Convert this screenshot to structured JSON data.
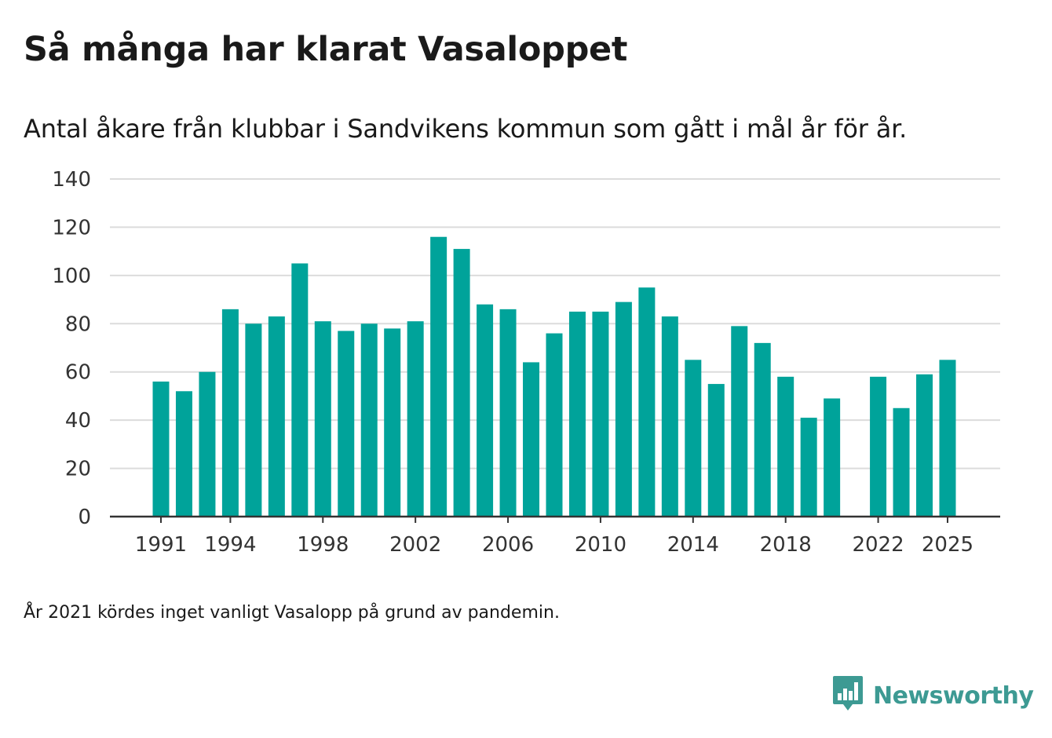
{
  "header": {
    "title": "Så många har klarat Vasaloppet",
    "subtitle": "Antal åkare från klubbar i Sandvikens kommun som gått i mål år för år."
  },
  "footer": {
    "note": "År 2021 kördes inget vanligt Vasalopp på grund av pandemin.",
    "brand": "Newsworthy",
    "brand_icon": "bar-chart-speech-bubble-icon"
  },
  "colors": {
    "bar": "#00a39a",
    "brand": "#3d9a93",
    "grid": "#dcdcdc",
    "axis": "#333333",
    "text": "#1a1a1a"
  },
  "chart_data": {
    "type": "bar",
    "title": "Så många har klarat Vasaloppet",
    "subtitle": "Antal åkare från klubbar i Sandvikens kommun som gått i mål år för år.",
    "xlabel": "",
    "ylabel": "",
    "ylim": [
      0,
      140
    ],
    "yticks": [
      0,
      20,
      40,
      60,
      80,
      100,
      120,
      140
    ],
    "xticks": [
      1991,
      1994,
      1998,
      2002,
      2006,
      2010,
      2014,
      2018,
      2022,
      2025
    ],
    "grid": true,
    "legend": "none",
    "categories": [
      1991,
      1992,
      1993,
      1994,
      1995,
      1996,
      1997,
      1998,
      1999,
      2000,
      2001,
      2002,
      2003,
      2004,
      2005,
      2006,
      2007,
      2008,
      2009,
      2010,
      2011,
      2012,
      2013,
      2014,
      2015,
      2016,
      2017,
      2018,
      2019,
      2020,
      2021,
      2022,
      2023,
      2024,
      2025
    ],
    "values": [
      56,
      52,
      60,
      86,
      80,
      83,
      105,
      81,
      77,
      80,
      78,
      81,
      116,
      111,
      88,
      86,
      64,
      76,
      85,
      85,
      89,
      95,
      83,
      65,
      55,
      79,
      72,
      58,
      41,
      49,
      null,
      58,
      45,
      59,
      65
    ]
  }
}
